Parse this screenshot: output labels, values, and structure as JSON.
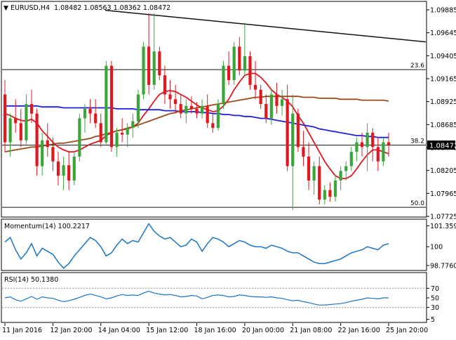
{
  "header": {
    "symbol": "EURUSD,H4",
    "ohlc": "1.08482 1.08563 1.08362 1.08472"
  },
  "colors": {
    "up": "#3aa63a",
    "down": "#e0171f",
    "sma_fast": "#e0171f",
    "sma_mid": "#1f1fd8",
    "sma_slow": "#9a4a1a",
    "osc": "#1c74c4",
    "trend": "#111111",
    "level": "#111111"
  },
  "chart_data": [
    {
      "type": "candlestick",
      "name": "EURUSD,H4",
      "ylim": [
        1.07725,
        1.09885
      ],
      "y_ticks": [
        "1.09885",
        "1.09645",
        "1.09405",
        "1.09165",
        "1.08925",
        "1.08685",
        "1.08445",
        "1.08205",
        "1.07965",
        "1.07725"
      ],
      "x_ticks": [
        "11 Jan 2016",
        "12 Jan 20:00",
        "14 Jan 04:00",
        "15 Jan 12:00",
        "18 Jan 16:00",
        "20 Jan 00:00",
        "21 Jan 08:00",
        "22 Jan 16:00",
        "25 Jan 20:00"
      ],
      "last_price": "1.08472",
      "fib_levels": [
        {
          "label": "23.6",
          "value": 1.0926
        },
        {
          "label": "38.2",
          "value": 1.0847
        },
        {
          "label": "50.0",
          "value": 1.0782
        }
      ],
      "trendline": {
        "start": 1.0988,
        "end": 1.0955
      },
      "candles": [
        [
          1.09,
          1.0915,
          1.084,
          1.085
        ],
        [
          1.085,
          1.088,
          1.0835,
          1.0875
        ],
        [
          1.0875,
          1.0895,
          1.086,
          1.087
        ],
        [
          1.087,
          1.0885,
          1.0845,
          1.0852
        ],
        [
          1.0852,
          1.09,
          1.0848,
          1.089
        ],
        [
          1.089,
          1.0905,
          1.087,
          1.088
        ],
        [
          1.088,
          1.0885,
          1.0815,
          1.0825
        ],
        [
          1.0825,
          1.086,
          1.0815,
          1.0852
        ],
        [
          1.0852,
          1.087,
          1.0835,
          1.0845
        ],
        [
          1.0845,
          1.0855,
          1.082,
          1.083
        ],
        [
          1.083,
          1.084,
          1.0805,
          1.0815
        ],
        [
          1.0815,
          1.0835,
          1.08,
          1.0826
        ],
        [
          1.0826,
          1.084,
          1.08,
          1.081
        ],
        [
          1.081,
          1.084,
          1.0805,
          1.0835
        ],
        [
          1.0835,
          1.088,
          1.083,
          1.0875
        ],
        [
          1.0875,
          1.089,
          1.086,
          1.0885
        ],
        [
          1.0885,
          1.0895,
          1.087,
          1.088
        ],
        [
          1.088,
          1.0895,
          1.0865,
          1.087
        ],
        [
          1.087,
          1.088,
          1.0845,
          1.085
        ],
        [
          1.085,
          1.0935,
          1.0848,
          1.093
        ],
        [
          1.093,
          1.0935,
          1.084,
          1.0845
        ],
        [
          1.0845,
          1.0865,
          1.0835,
          1.086
        ],
        [
          1.086,
          1.0875,
          1.085,
          1.0858
        ],
        [
          1.0858,
          1.087,
          1.0845,
          1.0865
        ],
        [
          1.0865,
          1.088,
          1.0855,
          1.0872
        ],
        [
          1.0872,
          1.0905,
          1.0865,
          1.09
        ],
        [
          1.09,
          1.0955,
          1.0895,
          1.095
        ],
        [
          1.095,
          1.0985,
          1.09,
          1.091
        ],
        [
          1.091,
          1.0985,
          1.0905,
          1.0945
        ],
        [
          1.0945,
          1.095,
          1.0915,
          1.092
        ],
        [
          1.092,
          1.093,
          1.089,
          1.09
        ],
        [
          1.09,
          1.0915,
          1.0885,
          1.0895
        ],
        [
          1.0895,
          1.091,
          1.088,
          1.089
        ],
        [
          1.089,
          1.09,
          1.0875,
          1.088
        ],
        [
          1.088,
          1.0895,
          1.087,
          1.0888
        ],
        [
          1.0888,
          1.0898,
          1.088,
          1.0885
        ],
        [
          1.0885,
          1.0892,
          1.0875,
          1.088
        ],
        [
          1.088,
          1.0895,
          1.0875,
          1.0888
        ],
        [
          1.0888,
          1.09,
          1.0865,
          1.087
        ],
        [
          1.087,
          1.088,
          1.086,
          1.0865
        ],
        [
          1.0865,
          1.0895,
          1.0862,
          1.089
        ],
        [
          1.089,
          1.0935,
          1.0885,
          1.093
        ],
        [
          1.093,
          1.0945,
          1.091,
          1.0915
        ],
        [
          1.0915,
          1.0955,
          1.091,
          1.095
        ],
        [
          1.095,
          1.096,
          1.092,
          1.0925
        ],
        [
          1.0925,
          1.0975,
          1.092,
          1.094
        ],
        [
          1.094,
          1.0945,
          1.0905,
          1.091
        ],
        [
          1.091,
          1.0935,
          1.0895,
          1.0905
        ],
        [
          1.0905,
          1.091,
          1.0885,
          1.089
        ],
        [
          1.089,
          1.09,
          1.087,
          1.0875
        ],
        [
          1.0875,
          1.0905,
          1.0868,
          1.09
        ],
        [
          1.09,
          1.0912,
          1.088,
          1.0888
        ],
        [
          1.0888,
          1.0905,
          1.0878,
          1.0895
        ],
        [
          1.0895,
          1.091,
          1.082,
          1.0825
        ],
        [
          1.0825,
          1.09,
          1.0779,
          1.088
        ],
        [
          1.088,
          1.0885,
          1.084,
          1.0845
        ],
        [
          1.0845,
          1.0862,
          1.0825,
          1.0835
        ],
        [
          1.0835,
          1.085,
          1.08,
          1.081
        ],
        [
          1.081,
          1.083,
          1.0795,
          1.0825
        ],
        [
          1.0825,
          1.0835,
          1.0785,
          1.079
        ],
        [
          1.079,
          1.0805,
          1.0785,
          1.08
        ],
        [
          1.08,
          1.0808,
          1.0788,
          1.0793
        ],
        [
          1.0793,
          1.0815,
          1.0788,
          1.081
        ],
        [
          1.081,
          1.0825,
          1.08,
          1.082
        ],
        [
          1.082,
          1.083,
          1.081,
          1.0825
        ],
        [
          1.0825,
          1.0845,
          1.082,
          1.084
        ],
        [
          1.084,
          1.0855,
          1.083,
          1.085
        ],
        [
          1.085,
          1.086,
          1.0835,
          1.0845
        ],
        [
          1.0845,
          1.087,
          1.082,
          1.086
        ],
        [
          1.086,
          1.0865,
          1.083,
          1.0845
        ],
        [
          1.0845,
          1.0855,
          1.082,
          1.083
        ],
        [
          1.083,
          1.0855,
          1.0825,
          1.085
        ],
        [
          1.085,
          1.086,
          1.0835,
          1.0847
        ]
      ],
      "series": [
        {
          "name": "",
          "color_key": "sma_fast",
          "values": [
            1.088,
            1.0878,
            1.0875,
            1.0873,
            1.0872,
            1.0874,
            1.087,
            1.0862,
            1.0856,
            1.085,
            1.0845,
            1.0842,
            1.084,
            1.084,
            1.0842,
            1.0845,
            1.0848,
            1.085,
            1.0852,
            1.0857,
            1.086,
            1.0862,
            1.0863,
            1.0864,
            1.0866,
            1.087,
            1.0878,
            1.0885,
            1.0893,
            1.09,
            1.0903,
            1.0904,
            1.0903,
            1.09,
            1.0897,
            1.0893,
            1.0889,
            1.0886,
            1.0884,
            1.0882,
            1.0883,
            1.0888,
            1.0895,
            1.0905,
            1.0913,
            1.092,
            1.0922,
            1.0922,
            1.0918,
            1.0912,
            1.0905,
            1.09,
            1.0897,
            1.0893,
            1.0887,
            1.0878,
            1.087,
            1.086,
            1.085,
            1.084,
            1.083,
            1.0822,
            1.0815,
            1.0812,
            1.0812,
            1.0815,
            1.0822,
            1.083,
            1.0837,
            1.0842,
            1.0842,
            1.084,
            1.0838
          ]
        },
        {
          "name": "",
          "color_key": "sma_mid",
          "values": [
            1.0888,
            1.0888,
            1.0888,
            1.0888,
            1.0888,
            1.0888,
            1.0888,
            1.0887,
            1.0887,
            1.0887,
            1.0887,
            1.0886,
            1.0886,
            1.0886,
            1.0886,
            1.0886,
            1.0886,
            1.0886,
            1.0886,
            1.0886,
            1.0886,
            1.0885,
            1.0885,
            1.0885,
            1.0885,
            1.0884,
            1.0884,
            1.0884,
            1.0884,
            1.0884,
            1.0883,
            1.0883,
            1.0883,
            1.0882,
            1.0882,
            1.0882,
            1.0882,
            1.0881,
            1.0881,
            1.088,
            1.088,
            1.0879,
            1.0879,
            1.0878,
            1.0878,
            1.0877,
            1.0877,
            1.0876,
            1.0875,
            1.0875,
            1.0874,
            1.0873,
            1.0872,
            1.0871,
            1.087,
            1.0869,
            1.0868,
            1.0867,
            1.0866,
            1.0864,
            1.0863,
            1.0862,
            1.0861,
            1.086,
            1.0859,
            1.0858,
            1.0857,
            1.0857,
            1.0856,
            1.0856,
            1.0855,
            1.0855,
            1.0855
          ]
        },
        {
          "name": "",
          "color_key": "sma_slow",
          "values": [
            1.084,
            1.0841,
            1.0842,
            1.0843,
            1.0844,
            1.0845,
            1.0845,
            1.0846,
            1.0847,
            1.0848,
            1.0849,
            1.0849,
            1.085,
            1.0851,
            1.0852,
            1.0853,
            1.0854,
            1.0856,
            1.0857,
            1.0859,
            1.086,
            1.0862,
            1.0863,
            1.0865,
            1.0866,
            1.0868,
            1.087,
            1.0872,
            1.0874,
            1.0876,
            1.0878,
            1.088,
            1.0881,
            1.0883,
            1.0884,
            1.0885,
            1.0886,
            1.0887,
            1.0888,
            1.0889,
            1.089,
            1.0891,
            1.0892,
            1.0893,
            1.0894,
            1.0895,
            1.0896,
            1.0897,
            1.0897,
            1.0898,
            1.0898,
            1.0898,
            1.0898,
            1.0898,
            1.0898,
            1.0898,
            1.0897,
            1.0897,
            1.0897,
            1.0896,
            1.0896,
            1.0896,
            1.0896,
            1.0895,
            1.0895,
            1.0895,
            1.0895,
            1.0894,
            1.0894,
            1.0894,
            1.0894,
            1.0894,
            1.0893
          ]
        }
      ]
    },
    {
      "type": "line",
      "label": "Momentum(14) 100.2217",
      "ylim": [
        98.5,
        101.7
      ],
      "y_ticks": [
        "101.3591",
        "100",
        "98.7760"
      ],
      "values": [
        100.3,
        100.6,
        99.8,
        99.2,
        99.6,
        100.2,
        99.4,
        99.9,
        99.7,
        99.5,
        99.0,
        98.6,
        98.9,
        99.4,
        99.8,
        100.2,
        100.6,
        100.4,
        100.0,
        99.4,
        99.6,
        100.1,
        100.5,
        100.2,
        100.4,
        100.3,
        100.9,
        101.5,
        101.0,
        100.7,
        100.5,
        100.6,
        100.3,
        100.0,
        100.1,
        100.5,
        100.3,
        99.7,
        100.2,
        100.6,
        100.5,
        100.3,
        100.0,
        100.2,
        100.4,
        100.3,
        100.1,
        100.0,
        100.0,
        99.9,
        100.1,
        100.0,
        99.9,
        99.7,
        99.6,
        99.6,
        99.4,
        99.2,
        99.0,
        98.9,
        98.9,
        99.0,
        99.1,
        99.2,
        99.4,
        99.6,
        99.7,
        99.8,
        100.0,
        99.9,
        99.8,
        100.1,
        100.2
      ]
    },
    {
      "type": "line",
      "label": "RSI(14) 50.1380",
      "ylim": [
        0,
        100
      ],
      "y_ticks": [
        "70",
        "50",
        "30",
        "5"
      ],
      "values": [
        50,
        52,
        46,
        43,
        48,
        53,
        47,
        52,
        50,
        49,
        45,
        42,
        44,
        47,
        51,
        55,
        58,
        55,
        52,
        48,
        50,
        54,
        57,
        55,
        56,
        55,
        60,
        64,
        60,
        58,
        56,
        57,
        55,
        52,
        53,
        55,
        54,
        48,
        51,
        55,
        56,
        55,
        52,
        53,
        56,
        55,
        53,
        52,
        52,
        51,
        52,
        50,
        49,
        46,
        44,
        45,
        42,
        40,
        37,
        35,
        35,
        36,
        37,
        38,
        40,
        43,
        45,
        47,
        50,
        49,
        48,
        50,
        50
      ]
    }
  ]
}
